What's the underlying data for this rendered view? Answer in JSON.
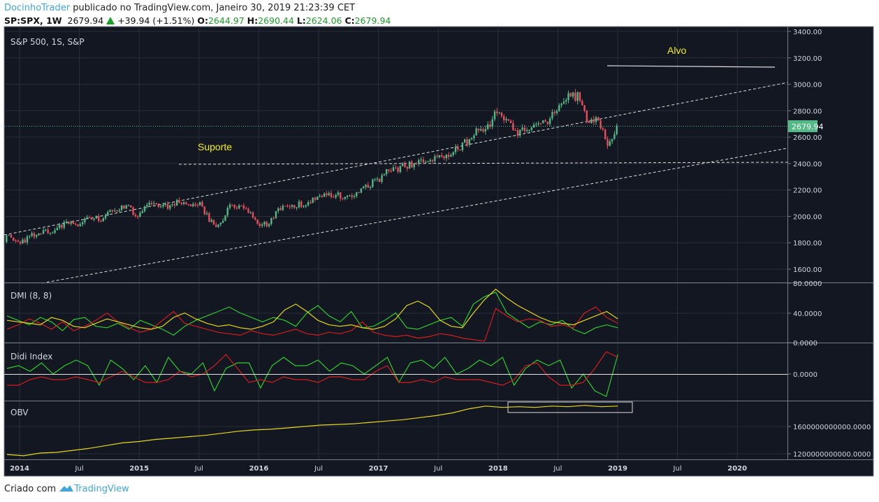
{
  "header": {
    "author": "DocinhoTrader",
    "published": "publicado no TradingView.com, Janeiro 30, 2019 21:23:39 CET",
    "symbol": "SP:SPX, 1W",
    "last": "2679.94",
    "change": "+39.94 (+1.51%)",
    "o_label": "O:",
    "o": "2644.97",
    "h_label": "H:",
    "h": "2690.44",
    "l_label": "L:",
    "l": "2624.06",
    "c_label": "C:",
    "c": "2679.94"
  },
  "footer": {
    "created": "Criado com",
    "brand": "TradingView"
  },
  "colors": {
    "bg": "#131722",
    "up": "#53b987",
    "down": "#eb4d5c",
    "green": "#2ecc2e",
    "red": "#d41c1c",
    "yellow": "#e5d81a",
    "accent": "#3fa7e0"
  },
  "chart_data": [
    {
      "type": "candlestick",
      "title": "S&P 500, 1S, S&P",
      "interval": "weekly",
      "monthly_closes_from": "2013-11",
      "monthly_closes": [
        1806,
        1848,
        1782,
        1859,
        1872,
        1884,
        1924,
        1960,
        1931,
        2003,
        1972,
        2018,
        2068,
        2059,
        1995,
        2105,
        2068,
        2086,
        2107,
        2063,
        2104,
        1972,
        1920,
        2079,
        2080,
        2044,
        1940,
        1932,
        2060,
        2065,
        2097,
        2099,
        2174,
        2171,
        2168,
        2126,
        2199,
        2239,
        2279,
        2364,
        2363,
        2384,
        2412,
        2423,
        2470,
        2472,
        2519,
        2575,
        2648,
        2674,
        2824,
        2714,
        2641,
        2648,
        2705,
        2718,
        2816,
        2902,
        2914,
        2712,
        2760,
        2507,
        2680
      ],
      "last_price_label": "2679.94",
      "ylim": [
        1540,
        3430
      ],
      "y_ticks": [
        "3400.00",
        "3200.00",
        "3000.00",
        "2800.00",
        "2600.00",
        "2400.00",
        "2200.00",
        "2000.00",
        "1800.00",
        "1600.00"
      ],
      "x_ticks": [
        "2014",
        "Jul",
        "2015",
        "Jul",
        "2016",
        "Jul",
        "2017",
        "Jul",
        "2018",
        "Jul",
        "2019",
        "Jul",
        "2020"
      ],
      "annotations": {
        "support": "Suporte",
        "target": "Alvo"
      }
    },
    {
      "type": "line",
      "title": "DMI (8, 8)",
      "ylim": [
        0,
        80
      ],
      "y_ticks": [
        "80.0000",
        "40.0000",
        "0.0000"
      ],
      "series": [
        {
          "name": "DI+",
          "color": "green",
          "values": [
            36,
            30,
            24,
            34,
            28,
            16,
            31,
            34,
            22,
            20,
            26,
            18,
            30,
            24,
            18,
            10,
            22,
            30,
            36,
            42,
            48,
            40,
            34,
            28,
            34,
            30,
            22,
            40,
            50,
            36,
            28,
            42,
            20,
            22,
            30,
            40,
            20,
            18,
            24,
            30,
            34,
            22,
            52,
            62,
            68,
            40,
            30,
            20,
            28,
            24,
            30,
            18,
            12,
            20,
            24,
            20
          ]
        },
        {
          "name": "DI-",
          "color": "red",
          "values": [
            18,
            24,
            32,
            26,
            18,
            28,
            16,
            22,
            30,
            40,
            28,
            20,
            14,
            18,
            30,
            42,
            26,
            22,
            18,
            14,
            12,
            10,
            16,
            12,
            10,
            14,
            18,
            12,
            10,
            14,
            12,
            16,
            28,
            14,
            10,
            8,
            10,
            6,
            8,
            12,
            10,
            6,
            4,
            2,
            46,
            36,
            28,
            32,
            30,
            22,
            24,
            20,
            40,
            48,
            34,
            26
          ]
        },
        {
          "name": "ADX",
          "color": "yellow",
          "values": [
            30,
            28,
            26,
            24,
            34,
            30,
            22,
            20,
            26,
            32,
            28,
            24,
            20,
            18,
            22,
            34,
            40,
            32,
            26,
            22,
            24,
            20,
            18,
            22,
            28,
            44,
            52,
            42,
            30,
            24,
            22,
            24,
            20,
            18,
            22,
            32,
            50,
            56,
            48,
            30,
            22,
            20,
            40,
            58,
            72,
            60,
            50,
            42,
            34,
            28,
            26,
            24,
            30,
            36,
            42,
            32
          ]
        }
      ]
    },
    {
      "type": "line",
      "title": "Didi Index",
      "y_ticks": [
        "0.0000"
      ],
      "series": [
        {
          "name": "fast",
          "color": "green",
          "values": [
            0.2,
            0.3,
            0.1,
            0.4,
            0.0,
            0.3,
            0.5,
            0.3,
            -0.4,
            0.5,
            0.2,
            -0.2,
            0.3,
            -0.3,
            0.6,
            0.1,
            0.0,
            0.4,
            -0.6,
            0.2,
            0.4,
            0.4,
            -0.5,
            0.3,
            0.6,
            0.3,
            0.3,
            0.5,
            0.1,
            0.4,
            0.3,
            0.0,
            0.3,
            0.6,
            -0.3,
            0.4,
            0.5,
            0.2,
            0.6,
            0.0,
            0.2,
            0.5,
            0.3,
            0.6,
            -0.4,
            0.2,
            0.5,
            0.3,
            0.5,
            -0.5,
            0.0,
            -0.6,
            -0.8,
            0.7
          ]
        },
        {
          "name": "slow",
          "color": "red",
          "values": [
            -0.4,
            -0.4,
            -0.2,
            -0.1,
            -0.2,
            -0.2,
            -0.1,
            -0.2,
            -0.3,
            -0.1,
            0.1,
            -0.1,
            -0.3,
            -0.3,
            -0.2,
            0.1,
            -0.1,
            0.0,
            0.3,
            0.7,
            0.2,
            -0.3,
            -0.2,
            -0.3,
            -0.1,
            -0.2,
            -0.2,
            -0.3,
            -0.1,
            -0.1,
            -0.2,
            -0.2,
            0.1,
            0.3,
            -0.3,
            -0.3,
            -0.2,
            -0.3,
            -0.1,
            -0.2,
            -0.2,
            -0.2,
            -0.3,
            -0.4,
            -0.2,
            0.3,
            0.4,
            -0.1,
            -0.4,
            -0.4,
            -0.3,
            0.2,
            0.8,
            0.6
          ]
        }
      ]
    },
    {
      "type": "line",
      "title": "OBV",
      "y_ticks": [
        "1600000000000.0000",
        "1200000000000.0000"
      ],
      "ylim": [
        1100000000000.0,
        2000000000000.0
      ],
      "series": [
        {
          "name": "OBV",
          "color": "yellow",
          "values": [
            1190000000000.0,
            1170000000000.0,
            1210000000000.0,
            1220000000000.0,
            1250000000000.0,
            1280000000000.0,
            1320000000000.0,
            1360000000000.0,
            1380000000000.0,
            1410000000000.0,
            1430000000000.0,
            1450000000000.0,
            1470000000000.0,
            1500000000000.0,
            1530000000000.0,
            1550000000000.0,
            1560000000000.0,
            1580000000000.0,
            1600000000000.0,
            1620000000000.0,
            1630000000000.0,
            1640000000000.0,
            1660000000000.0,
            1680000000000.0,
            1700000000000.0,
            1730000000000.0,
            1760000000000.0,
            1800000000000.0,
            1860000000000.0,
            1900000000000.0,
            1880000000000.0,
            1890000000000.0,
            1880000000000.0,
            1900000000000.0,
            1890000000000.0,
            1910000000000.0,
            1890000000000.0,
            1900000000000.0
          ]
        }
      ]
    }
  ]
}
